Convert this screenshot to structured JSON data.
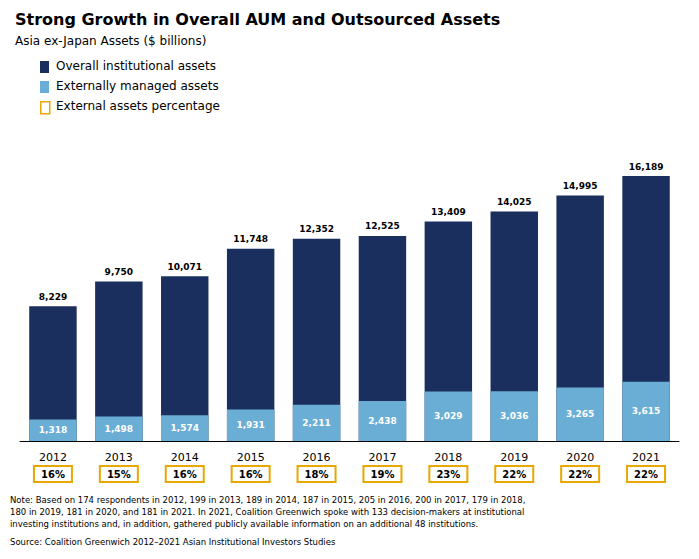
{
  "chart_data": {
    "type": "bar",
    "title": "Strong Growth in Overall AUM and Outsourced Assets",
    "subtitle": "Asia ex-Japan Assets ($ billions)",
    "categories": [
      "2012",
      "2013",
      "2014",
      "2015",
      "2016",
      "2017",
      "2018",
      "2019",
      "2020",
      "2021"
    ],
    "series": [
      {
        "name": "Overall institutional assets",
        "color": "#1a2f5e",
        "values": [
          8229,
          9750,
          10071,
          11748,
          12352,
          12525,
          13409,
          14025,
          14995,
          16189
        ],
        "value_labels": [
          "8,229",
          "9,750",
          "10,071",
          "11,748",
          "12,352",
          "12,525",
          "13,409",
          "14,025",
          "14,995",
          "16,189"
        ]
      },
      {
        "name": "Externally managed assets",
        "color": "#6aaed6",
        "values": [
          1318,
          1498,
          1574,
          1931,
          2211,
          2438,
          3029,
          3036,
          3265,
          3615
        ],
        "value_labels": [
          "1,318",
          "1,498",
          "1,574",
          "1,931",
          "2,211",
          "2,438",
          "3,029",
          "3,036",
          "3,265",
          "3,615"
        ]
      },
      {
        "name": "External assets percentage",
        "type": "label",
        "color": "#e8a800",
        "values": [
          16,
          15,
          16,
          16,
          18,
          19,
          23,
          22,
          22,
          22
        ],
        "value_labels": [
          "16%",
          "15%",
          "16%",
          "16%",
          "18%",
          "19%",
          "23%",
          "22%",
          "22%",
          "22%"
        ]
      }
    ],
    "ylim": [
      0,
      19000
    ],
    "stacked": false,
    "data_labels": true,
    "tick_labels": "x",
    "grid": false,
    "legend": "upper left",
    "annotations": [
      "Note: Based on 174 respondents in 2012, 199 in 2013, 189 in 2014, 187 in 2015, 205 in 2016, 200 in 2017, 179 in 2018,\n180 in 2019, 181 in 2020, and 181 in 2021. In 2021, Coalition Greenwich spoke with 133 decision-makers at institutional\ninvesting institutions and, in addition, gathered publicly available information on an additional 48 institutions.",
      "Source: Coalition Greenwich 2012–2021 Asian Institutional Investors Studies"
    ]
  }
}
